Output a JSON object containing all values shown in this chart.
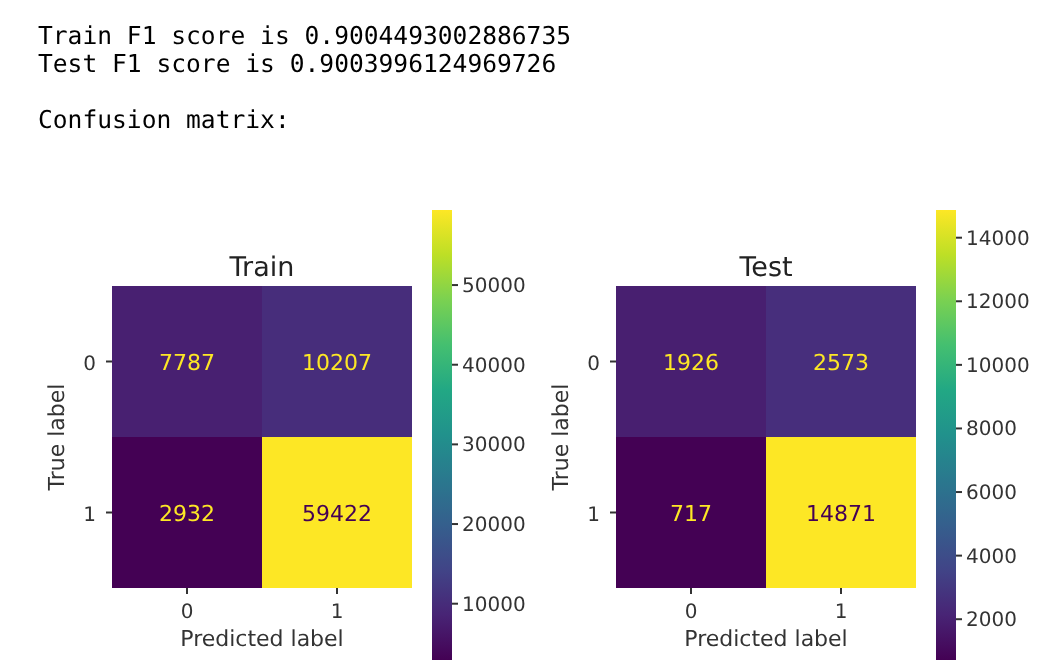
{
  "chart_data": [
    {
      "type": "other",
      "annotations": [
        "Train F1 score is 0.9004493002886735",
        "Test F1 score is 0.9003996124969726",
        "Confusion matrix:"
      ]
    },
    {
      "type": "heatmap",
      "title": "Train",
      "xlabel": "Predicted label",
      "ylabel": "True label",
      "categories": [
        "0",
        "1"
      ],
      "y_categories": [
        "0",
        "1"
      ],
      "cells": [
        [
          7787,
          10207
        ],
        [
          2932,
          59422
        ]
      ],
      "data_labels": true,
      "clim": [
        2932,
        59422
      ],
      "cticks": [
        10000,
        20000,
        30000,
        40000,
        50000
      ]
    },
    {
      "type": "heatmap",
      "title": "Test",
      "xlabel": "Predicted label",
      "ylabel": "True label",
      "categories": [
        "0",
        "1"
      ],
      "y_categories": [
        "0",
        "1"
      ],
      "cells": [
        [
          1926,
          2573
        ],
        [
          717,
          14871
        ]
      ],
      "data_labels": true,
      "clim": [
        717,
        14871
      ],
      "cticks": [
        2000,
        4000,
        6000,
        8000,
        10000,
        12000,
        14000
      ]
    }
  ]
}
